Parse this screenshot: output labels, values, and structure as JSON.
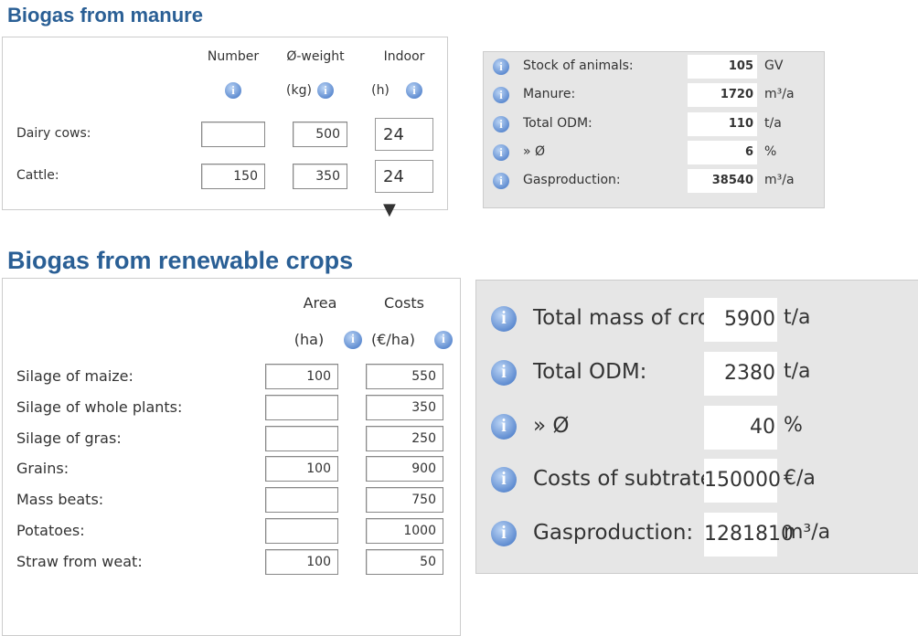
{
  "manure": {
    "title": "Biogas from manure",
    "headers": [
      [
        "Number",
        null
      ],
      [
        "Ø-weight",
        "(kg)"
      ],
      [
        "Indoor",
        "(h)"
      ]
    ],
    "rows": [
      {
        "label": "Dairy cows:",
        "number": null,
        "weight": "500",
        "indoor": "24"
      },
      {
        "label": "Cattle:",
        "number": "150",
        "weight": "350",
        "indoor": "24"
      }
    ],
    "summary": [
      {
        "label": "Stock of animals:",
        "value": "105",
        "unit": "GV"
      },
      {
        "label": "Manure:",
        "value": "1720",
        "unit": "m³/a"
      },
      {
        "label": "Total ODM:",
        "value": "110",
        "unit": "t/a"
      },
      {
        "label": "» Ø",
        "value": "6",
        "unit": "%"
      },
      {
        "label": "Gasproduction:",
        "value": "38540",
        "unit": "m³/a"
      }
    ]
  },
  "crops": {
    "title": "Biogas from renewable crops",
    "headers": [
      [
        "Area",
        "(ha)"
      ],
      [
        "Costs",
        "(€/ha)"
      ]
    ],
    "rows": [
      {
        "label": "Silage of maize:",
        "area": "100",
        "cost": "550"
      },
      {
        "label": "Silage of whole plants:",
        "area": null,
        "cost": "350"
      },
      {
        "label": "Silage of gras:",
        "area": null,
        "cost": "250"
      },
      {
        "label": "Grains:",
        "area": "100",
        "cost": "900"
      },
      {
        "label": "Mass beats:",
        "area": null,
        "cost": "750"
      },
      {
        "label": "Potatoes:",
        "area": null,
        "cost": "1000"
      },
      {
        "label": "Straw from weat:",
        "area": "100",
        "cost": "50"
      }
    ],
    "summary": [
      {
        "label": "Total mass of crops:",
        "value": "5900",
        "unit": "t/a"
      },
      {
        "label": "Total ODM:",
        "value": "2380",
        "unit": "t/a"
      },
      {
        "label": "» Ø",
        "value": "40",
        "unit": "%"
      },
      {
        "label": "Costs of subtrate:",
        "value": "150000",
        "unit": "€/a"
      },
      {
        "label": "Gasproduction:",
        "value": "1281810",
        "unit": "m³/a"
      }
    ]
  }
}
